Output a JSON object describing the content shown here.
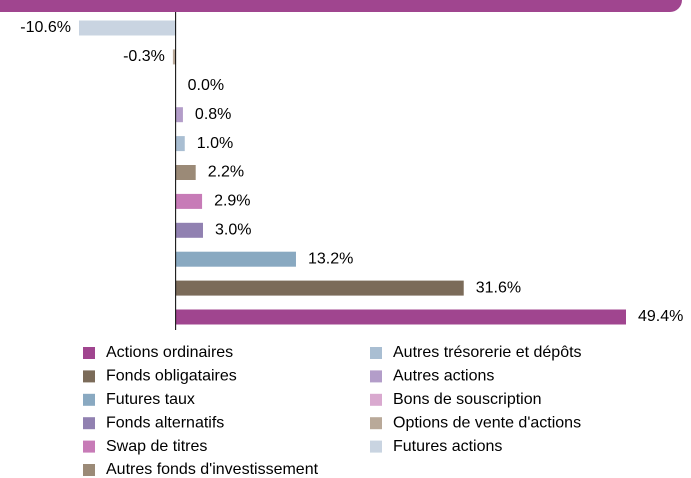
{
  "chart_data": {
    "type": "bar",
    "orientation": "horizontal",
    "categories": [
      "Actions ordinaires",
      "Fonds obligataires",
      "Futures taux",
      "Fonds alternatifs",
      "Swap de titres",
      "Autres fonds d'investissement",
      "Autres trésorerie et dépôts",
      "Autres actions",
      "Bons de souscription",
      "Options de vente d'actions",
      "Futures actions"
    ],
    "values": [
      49.4,
      31.6,
      13.2,
      3.0,
      2.9,
      2.2,
      1.0,
      0.8,
      0.0,
      -0.3,
      -10.6
    ],
    "value_labels": [
      "49.4%",
      "31.6%",
      "13.2%",
      "3.0%",
      "2.9%",
      "2.2%",
      "1.0%",
      "0.8%",
      "0.0%",
      "-0.3%",
      "-10.6%"
    ],
    "colors": [
      "#a0458f",
      "#7b6b59",
      "#89a9c1",
      "#9181b1",
      "#c77bb7",
      "#9b8a77",
      "#a9bed2",
      "#b39dc9",
      "#d9a9cf",
      "#b9a999",
      "#c9d4e1"
    ]
  }
}
